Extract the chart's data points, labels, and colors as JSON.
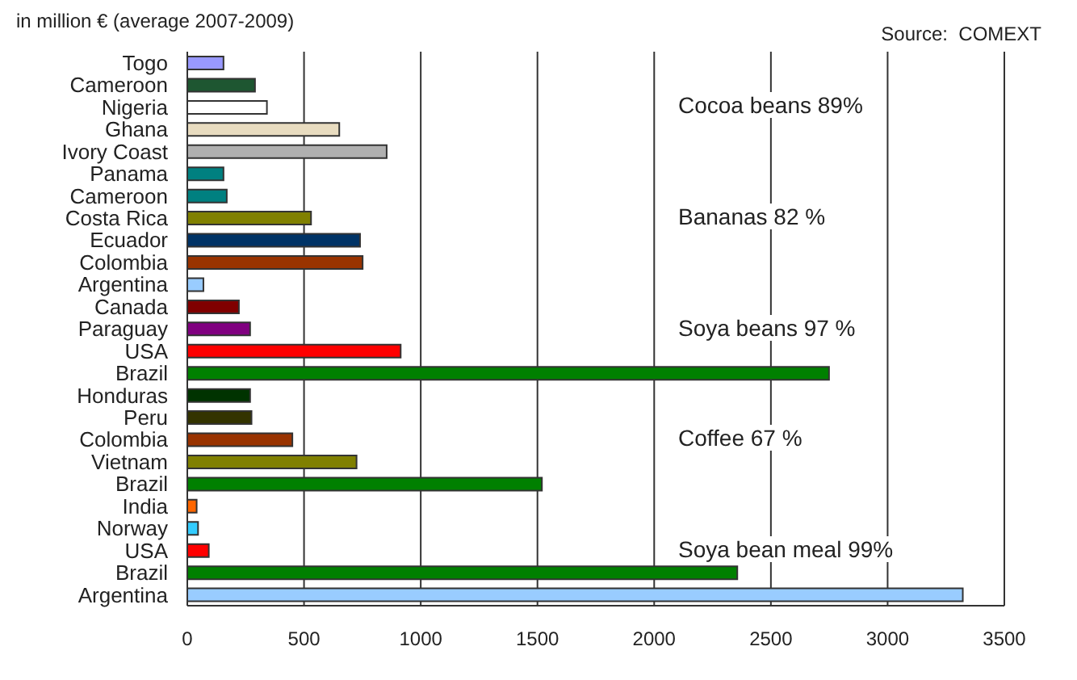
{
  "chart_data": {
    "type": "bar",
    "orientation": "horizontal",
    "title": "in million € (average 2007-2009)",
    "categories": [
      "Togo",
      "Cameroon",
      "Nigeria",
      "Ghana",
      "Ivory Coast",
      "Panama",
      "Cameroon",
      "Costa Rica",
      "Ecuador",
      "Colombia",
      "Argentina",
      "Canada",
      "Paraguay",
      "USA",
      "Brazil",
      "Honduras",
      "Peru",
      "Colombia",
      "Vietnam",
      "Brazil",
      "India",
      "Norway",
      "USA",
      "Brazil",
      "Argentina"
    ],
    "values": [
      155,
      290,
      341,
      651,
      854,
      155,
      169,
      530,
      740,
      751,
      69,
      221,
      269,
      914,
      2749,
      269,
      275,
      450,
      725,
      1519,
      40,
      46,
      92,
      2356,
      3322
    ],
    "colors": [
      "#9999ff",
      "#1e5631",
      "#ffffff",
      "#e8dcc0",
      "#b0b0b0",
      "#008080",
      "#008080",
      "#808000",
      "#003366",
      "#993300",
      "#99ccff",
      "#800000",
      "#800080",
      "#ff0000",
      "#008000",
      "#003300",
      "#333300",
      "#993300",
      "#808000",
      "#008000",
      "#ff6600",
      "#33ccff",
      "#ff0000",
      "#008000",
      "#99ccff"
    ],
    "xlim": [
      0,
      3500
    ],
    "xticks": [
      0,
      500,
      1000,
      1500,
      2000,
      2500,
      3000,
      3500
    ],
    "grid": "x",
    "annotations": [
      "Source:  COMEXT",
      "Cocoa beans 89%",
      "Bananas 82 %",
      "Soya beans 97 %",
      "Coffee 67 %",
      "Soya bean meal 99%"
    ]
  }
}
